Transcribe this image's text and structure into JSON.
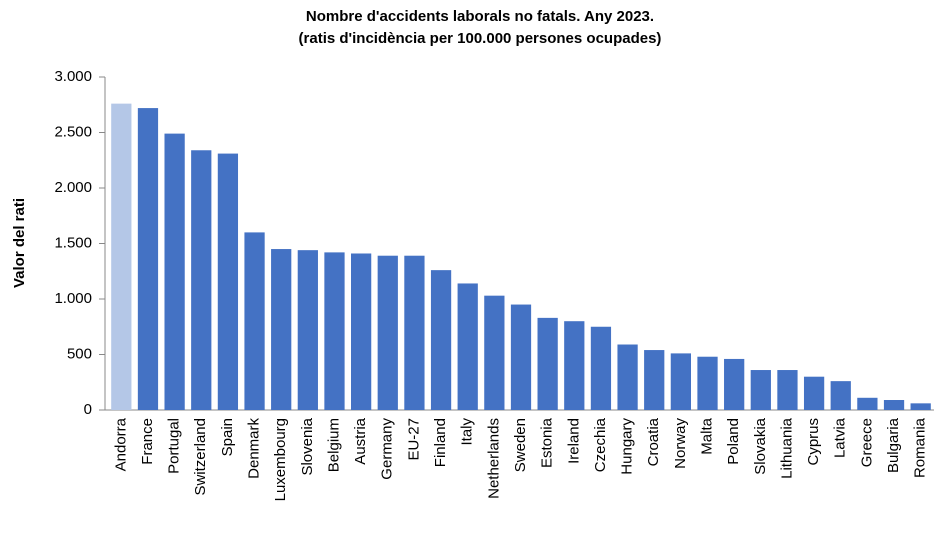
{
  "chart_data": {
    "type": "bar",
    "title": "Nombre d'accidents laborals no fatals. Any 2023.",
    "subtitle": "(ratis d'incidència per 100.000 persones ocupades)",
    "y_label": "Valor del rati",
    "categories": [
      "Andorra",
      "France",
      "Portugal",
      "Switzerland",
      "Spain",
      "Denmark",
      "Luxembourg",
      "Slovenia",
      "Belgium",
      "Austria",
      "Germany",
      "EU-27",
      "Finland",
      "Italy",
      "Netherlands",
      "Sweden",
      "Estonia",
      "Ireland",
      "Czechia",
      "Hungary",
      "Croatia",
      "Norway",
      "Malta",
      "Poland",
      "Slovakia",
      "Lithuania",
      "Cyprus",
      "Latvia",
      "Greece",
      "Bulgaria",
      "Romania"
    ],
    "values": [
      2760,
      2720,
      2490,
      2340,
      2310,
      1600,
      1450,
      1440,
      1420,
      1410,
      1390,
      1390,
      1260,
      1140,
      1030,
      950,
      830,
      800,
      750,
      590,
      540,
      510,
      480,
      460,
      360,
      360,
      300,
      260,
      110,
      90,
      60
    ],
    "color": "#4472c4",
    "highlight": {
      "category": "Andorra",
      "color": "#b4c7e7"
    },
    "ylim": [
      0,
      3000
    ],
    "yticks": [
      0,
      500,
      {
        "value": 1000,
        "label": "1.000"
      },
      {
        "value": 1500,
        "label": "1.500"
      },
      {
        "value": 2000,
        "label": "2.000"
      },
      {
        "value": 2500,
        "label": "2.500"
      },
      {
        "value": 3000,
        "label": "3.000"
      }
    ],
    "grid": false
  }
}
